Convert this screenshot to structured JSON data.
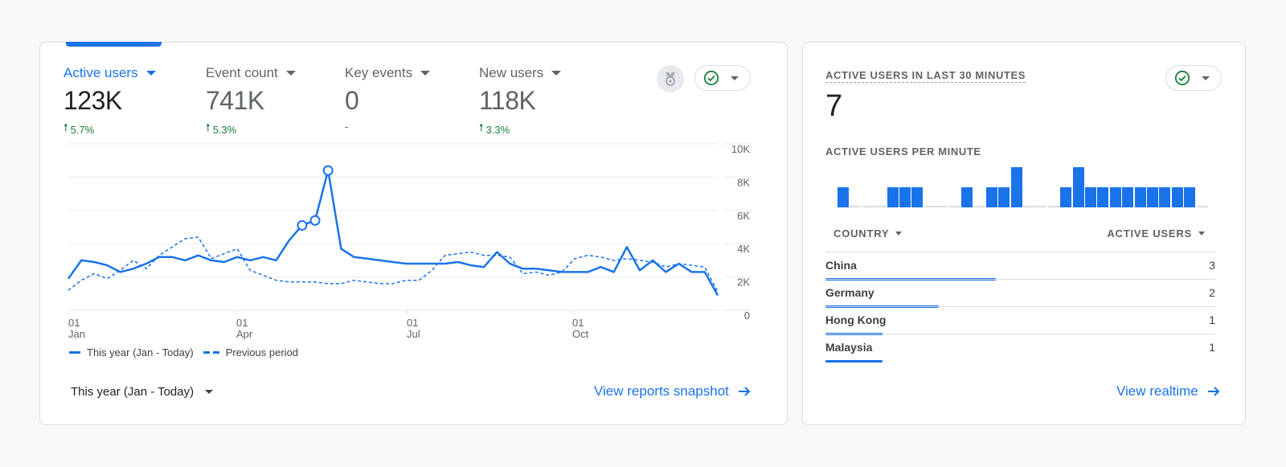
{
  "main_card": {
    "metrics": [
      {
        "label": "Active users",
        "value": "123K",
        "delta": "5.7%",
        "delta_direction": "up",
        "active": true
      },
      {
        "label": "Event count",
        "value": "741K",
        "delta": "5.3%",
        "delta_direction": "up",
        "active": false
      },
      {
        "label": "Key events",
        "value": "0",
        "delta": "-",
        "delta_direction": "none",
        "active": false
      },
      {
        "label": "New users",
        "value": "118K",
        "delta": "3.3%",
        "delta_direction": "up",
        "active": false
      }
    ],
    "icons": {
      "insights": "medal-icon",
      "status": "check-circle-icon"
    },
    "legend": {
      "current": "This year (Jan - Today)",
      "previous": "Previous period"
    },
    "date_range": "This year (Jan - Today)",
    "link_label": "View reports snapshot",
    "colors": {
      "accent": "#1a73e8",
      "positive": "#188038",
      "status_ok": "#188038"
    }
  },
  "chart_data": {
    "type": "line",
    "title": "Active users",
    "xlabel": "",
    "ylabel": "",
    "ylim": [
      0,
      10000
    ],
    "y_ticks": [
      "0",
      "2K",
      "4K",
      "6K",
      "8K",
      "10K"
    ],
    "x_ticks": [
      {
        "day": "01",
        "month": "Jan"
      },
      {
        "day": "01",
        "month": "Apr"
      },
      {
        "day": "01",
        "month": "Jul"
      },
      {
        "day": "01",
        "month": "Oct"
      }
    ],
    "grid": true,
    "legend_position": "bottom-left",
    "x_unit": "week",
    "series": [
      {
        "name": "This year (Jan - Today)",
        "style": "solid",
        "values": [
          1.9,
          3.0,
          2.9,
          2.7,
          2.3,
          2.5,
          2.8,
          3.2,
          3.2,
          3.0,
          3.3,
          3.0,
          2.9,
          3.2,
          3.0,
          3.2,
          3.0,
          4.2,
          5.1,
          5.4,
          8.4,
          3.7,
          3.2,
          3.1,
          3.0,
          2.9,
          2.8,
          2.8,
          2.8,
          2.8,
          2.9,
          2.7,
          2.6,
          3.5,
          2.8,
          2.5,
          2.5,
          2.4,
          2.3,
          2.3,
          2.3,
          2.6,
          2.3,
          3.8,
          2.4,
          3.0,
          2.3,
          2.8,
          2.3,
          2.3,
          0.9
        ],
        "highlighted_points": [
          18,
          19,
          20
        ]
      },
      {
        "name": "Previous period",
        "style": "dashed",
        "values": [
          1.2,
          1.8,
          2.2,
          1.9,
          2.4,
          3.0,
          2.5,
          3.3,
          3.8,
          4.3,
          4.4,
          3.1,
          3.4,
          3.7,
          2.4,
          2.1,
          1.8,
          1.7,
          1.7,
          1.7,
          1.6,
          1.6,
          1.8,
          1.7,
          1.6,
          1.6,
          1.8,
          1.8,
          2.4,
          3.3,
          3.4,
          3.5,
          3.3,
          3.3,
          3.2,
          2.2,
          2.3,
          2.1,
          2.3,
          3.1,
          3.3,
          3.2,
          3.0,
          3.1,
          3.0,
          2.9,
          2.6,
          2.8,
          2.7,
          2.6,
          1.1
        ]
      }
    ]
  },
  "realtime_card": {
    "title": "ACTIVE USERS IN LAST 30 MINUTES",
    "value": "7",
    "per_minute_title": "ACTIVE USERS PER MINUTE",
    "per_minute": [
      1,
      0,
      0,
      0,
      1,
      1,
      1,
      0,
      0,
      0,
      1,
      0,
      1,
      1,
      2,
      0,
      0,
      0,
      1,
      2,
      1,
      1,
      1,
      1,
      1,
      1,
      1,
      1,
      1,
      0
    ],
    "table": {
      "headers": {
        "country": "COUNTRY",
        "users": "ACTIVE USERS"
      },
      "rows": [
        {
          "country": "China",
          "users": "3",
          "value": 3
        },
        {
          "country": "Germany",
          "users": "2",
          "value": 2
        },
        {
          "country": "Hong Kong",
          "users": "1",
          "value": 1
        },
        {
          "country": "Malaysia",
          "users": "1",
          "value": 1
        }
      ]
    },
    "link_label": "View realtime"
  }
}
